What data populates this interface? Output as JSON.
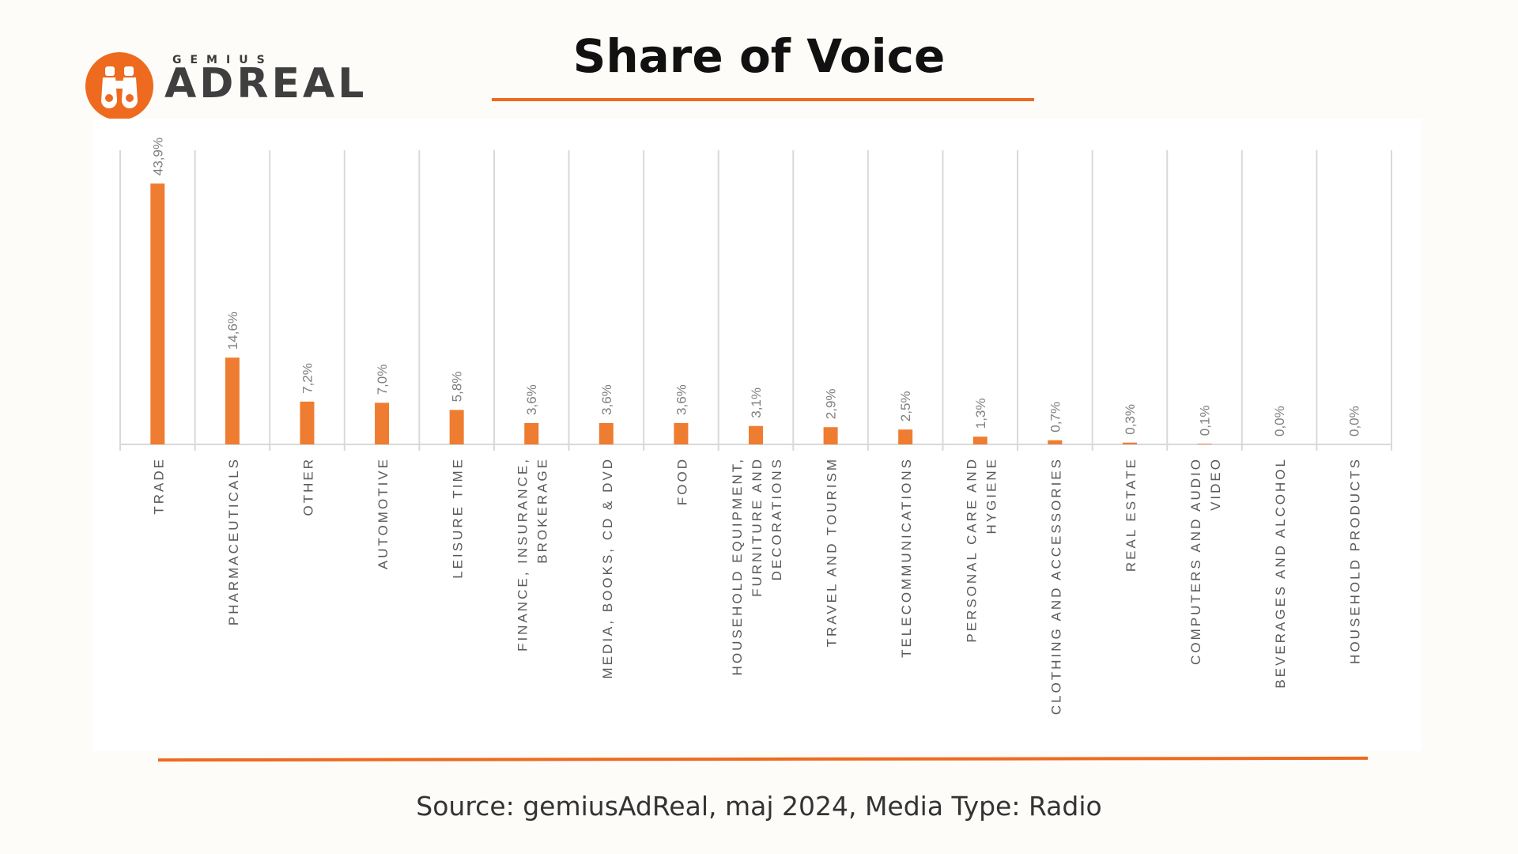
{
  "logo": {
    "small_text": "GEMIUS",
    "big_text": "ADREAL",
    "icon": "binoculars-icon",
    "color": "#ee6a1f"
  },
  "header": {
    "title": "Share of Voice"
  },
  "footer": {
    "source": "Source: gemiusAdReal, maj 2024, Media Type: Radio"
  },
  "colors": {
    "accent": "#ee6a1f",
    "bar": "#ee7d31",
    "grid": "#d9d9d9",
    "label": "#595959"
  },
  "chart_data": {
    "type": "bar",
    "title": "Share of Voice",
    "categories": [
      "TRADE",
      "PHARMACEUTICALS",
      "OTHER",
      "AUTOMOTIVE",
      "LEISURE TIME",
      "FINANCE, INSURANCE, BROKERAGE",
      "MEDIA, BOOKS, CD & DVD",
      "FOOD",
      "HOUSEHOLD EQUIPMENT, FURNITURE AND DECORATIONS",
      "TRAVEL AND TOURISM",
      "TELECOMMUNICATIONS",
      "PERSONAL CARE AND HYGIENE",
      "CLOTHING AND ACCESSORIES",
      "REAL ESTATE",
      "COMPUTERS AND AUDIO VIDEO",
      "BEVERAGES AND ALCOHOL",
      "HOUSEHOLD PRODUCTS"
    ],
    "category_lines": [
      [
        "TRADE"
      ],
      [
        "PHARMACEUTICALS"
      ],
      [
        "OTHER"
      ],
      [
        "AUTOMOTIVE"
      ],
      [
        "LEISURE TIME"
      ],
      [
        "FINANCE, INSURANCE,",
        "BROKERAGE"
      ],
      [
        "MEDIA, BOOKS, CD & DVD"
      ],
      [
        "FOOD"
      ],
      [
        "HOUSEHOLD EQUIPMENT,",
        "FURNITURE AND",
        "DECORATIONS"
      ],
      [
        "TRAVEL AND TOURISM"
      ],
      [
        "TELECOMMUNICATIONS"
      ],
      [
        "PERSONAL CARE AND",
        "HYGIENE"
      ],
      [
        "CLOTHING AND ACCESSORIES"
      ],
      [
        "REAL ESTATE"
      ],
      [
        "COMPUTERS AND AUDIO",
        "VIDEO"
      ],
      [
        "BEVERAGES AND ALCOHOL"
      ],
      [
        "HOUSEHOLD PRODUCTS"
      ]
    ],
    "values": [
      43.9,
      14.6,
      7.2,
      7.0,
      5.8,
      3.6,
      3.6,
      3.6,
      3.1,
      2.9,
      2.5,
      1.3,
      0.7,
      0.3,
      0.1,
      0.0,
      0.0
    ],
    "value_labels": [
      "43,9%",
      "14,6%",
      "7,2%",
      "7,0%",
      "5,8%",
      "3,6%",
      "3,6%",
      "3,6%",
      "3,1%",
      "2,9%",
      "2,5%",
      "1,3%",
      "0,7%",
      "0,3%",
      "0,1%",
      "0,0%",
      "0,0%"
    ],
    "ylim": [
      0,
      50
    ],
    "xlabel": "",
    "ylabel": "",
    "vertical_gridlines": true,
    "legend": "none"
  }
}
